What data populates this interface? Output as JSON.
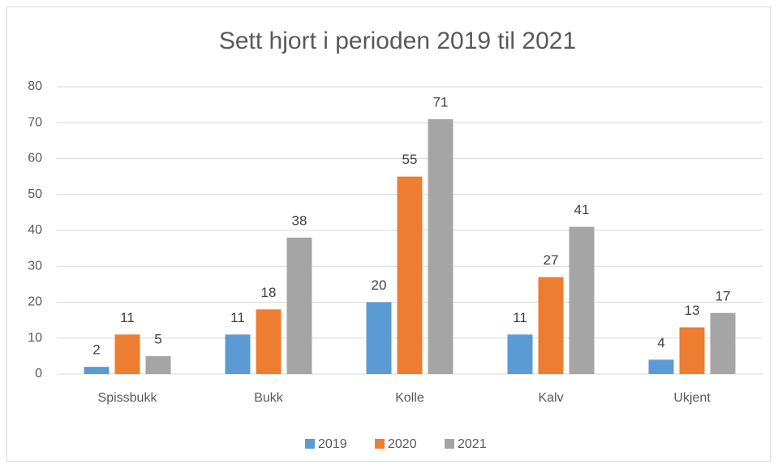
{
  "chart_data": {
    "type": "bar",
    "title": "Sett hjort i perioden 2019 til 2021",
    "categories": [
      "Spissbukk",
      "Bukk",
      "Kolle",
      "Kalv",
      "Ukjent"
    ],
    "series": [
      {
        "name": "2019",
        "color": "#5b9bd5",
        "values": [
          2,
          11,
          20,
          11,
          4
        ]
      },
      {
        "name": "2020",
        "color": "#ed7d31",
        "values": [
          11,
          18,
          55,
          27,
          13
        ]
      },
      {
        "name": "2021",
        "color": "#a5a5a5",
        "values": [
          5,
          38,
          71,
          41,
          17
        ]
      }
    ],
    "ylim": [
      0,
      80
    ],
    "yticks": [
      0,
      10,
      20,
      30,
      40,
      50,
      60,
      70,
      80
    ],
    "grid": true,
    "legend": "bottom"
  }
}
